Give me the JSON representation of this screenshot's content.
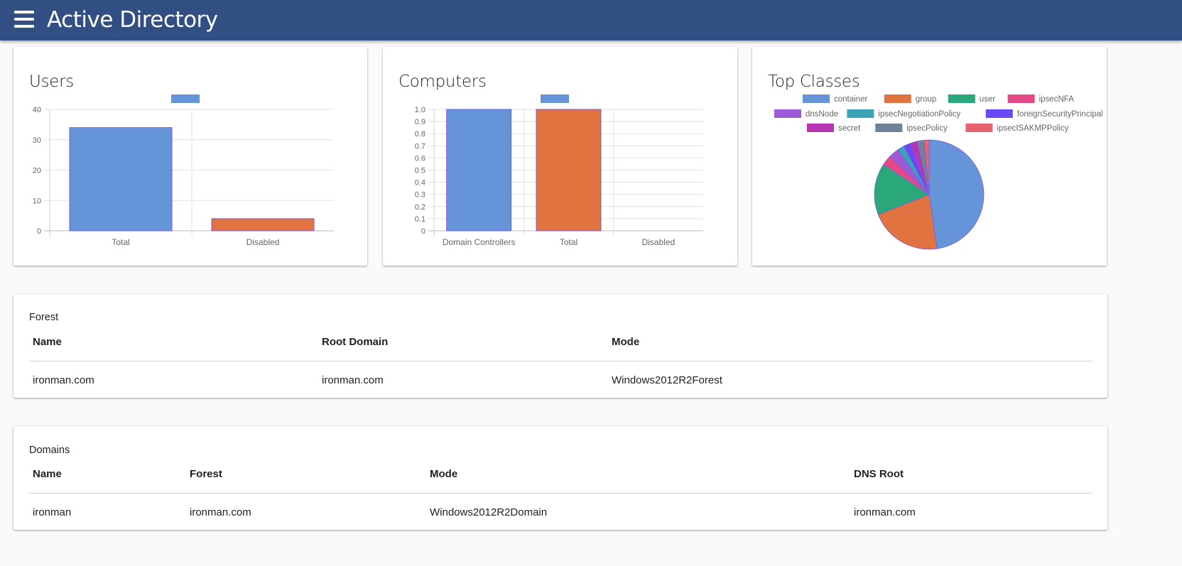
{
  "app": {
    "title": "Active Directory"
  },
  "users_card": {
    "title": "Users",
    "chart_data": {
      "type": "bar",
      "categories": [
        "Total",
        "Disabled"
      ],
      "values": [
        34,
        4
      ],
      "colors": [
        "#6694d9",
        "#e07340"
      ],
      "ylim": [
        0,
        40
      ],
      "yticks": [
        0,
        10,
        20,
        30,
        40
      ],
      "title": "",
      "xlabel": "",
      "ylabel": "",
      "grid": true
    }
  },
  "computers_card": {
    "title": "Computers",
    "chart_data": {
      "type": "bar",
      "categories": [
        "Domain Controllers",
        "Total",
        "Disabled"
      ],
      "values": [
        1,
        1,
        0
      ],
      "colors": [
        "#6694d9",
        "#e07340",
        "#2ba87a"
      ],
      "ylim": [
        0,
        1.0
      ],
      "yticks": [
        "0",
        "0.1",
        "0.2",
        "0.3",
        "0.4",
        "0.5",
        "0.6",
        "0.7",
        "0.8",
        "0.9",
        "1.0"
      ],
      "title": "",
      "xlabel": "",
      "ylabel": "",
      "grid": true
    }
  },
  "classes_card": {
    "title": "Top Classes",
    "chart_data": {
      "type": "pie",
      "legend_position": "top",
      "labels": [
        "container",
        "group",
        "user",
        "ipsecNFA",
        "dnsNode",
        "ipsecNegotiationPolicy",
        "foreignSecurityPrincipal",
        "secret",
        "ipsecPolicy",
        "ipsecISAKMPPolicy"
      ],
      "values": [
        47,
        21,
        15,
        3,
        3,
        2,
        2,
        2,
        2,
        1.5
      ],
      "colors": [
        "#6694d9",
        "#e07340",
        "#2ba87a",
        "#e34a86",
        "#9d5ad6",
        "#3aa3b8",
        "#6a48f5",
        "#b935b0",
        "#708299",
        "#e86370"
      ]
    }
  },
  "forest": {
    "title": "Forest",
    "columns": [
      "Name",
      "Root Domain",
      "Mode"
    ],
    "rows": [
      [
        "ironman.com",
        "ironman.com",
        "Windows2012R2Forest"
      ]
    ]
  },
  "domains": {
    "title": "Domains",
    "columns": [
      "Name",
      "Forest",
      "Mode",
      "DNS Root"
    ],
    "rows": [
      [
        "ironman",
        "ironman.com",
        "Windows2012R2Domain",
        "ironman.com"
      ]
    ]
  }
}
